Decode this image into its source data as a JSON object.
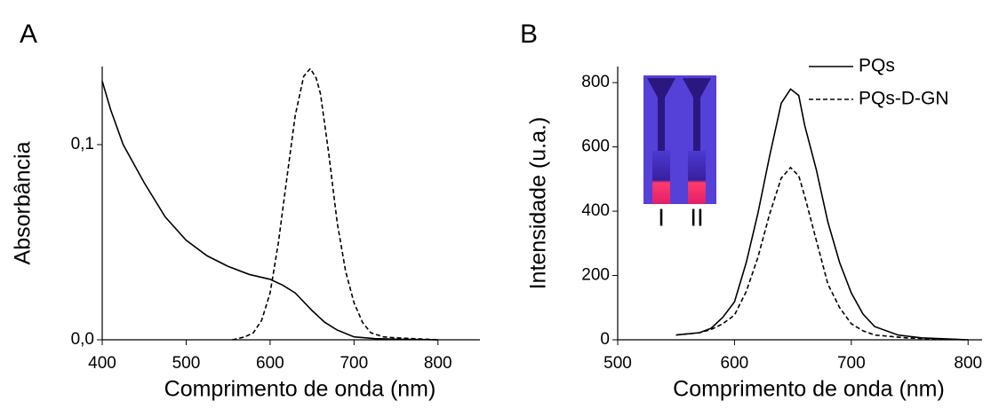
{
  "chart_data": [
    {
      "type": "line",
      "panel_label": "A",
      "xlabel": "Comprimento de onda (nm)",
      "ylabel": "Absorbância",
      "xlim": [
        400,
        850
      ],
      "xticks": [
        400,
        500,
        600,
        700,
        800
      ],
      "ylim": [
        0,
        0.14
      ],
      "yticks": [
        {
          "value": 0,
          "label": "0,0"
        },
        {
          "value": 0.1,
          "label": "0,1"
        }
      ],
      "series": [
        {
          "color": "#000000",
          "dash": "solid",
          "x": [
            400,
            410,
            425,
            450,
            475,
            500,
            525,
            550,
            575,
            600,
            615,
            630,
            650,
            665,
            680,
            700,
            725,
            750,
            800
          ],
          "values": [
            0.1326,
            0.118,
            0.1,
            0.0805,
            0.063,
            0.051,
            0.043,
            0.0376,
            0.0335,
            0.031,
            0.028,
            0.024,
            0.015,
            0.009,
            0.005,
            0.0015,
            0.0006,
            0.0003,
            0
          ]
        },
        {
          "color": "#000000",
          "dash": "dashed",
          "x": [
            555,
            570,
            580,
            590,
            600,
            610,
            620,
            630,
            640,
            648,
            655,
            660,
            670,
            680,
            690,
            700,
            710,
            720,
            735,
            750,
            800
          ],
          "values": [
            0,
            0.0015,
            0.0036,
            0.01,
            0.024,
            0.05,
            0.083,
            0.115,
            0.135,
            0.139,
            0.134,
            0.126,
            0.095,
            0.06,
            0.035,
            0.019,
            0.009,
            0.0036,
            0.0015,
            0.001,
            0
          ]
        }
      ]
    },
    {
      "type": "line",
      "panel_label": "B",
      "xlabel": "Comprimento de onda (nm)",
      "ylabel": "Intensidade (u.a.)",
      "xlim": [
        500,
        812
      ],
      "xticks": [
        500,
        600,
        700,
        800
      ],
      "ylim": [
        0,
        850
      ],
      "yticks": [
        0,
        200,
        400,
        600,
        800
      ],
      "legend": "upper right",
      "inset_labels": [
        "I",
        "II"
      ],
      "series": [
        {
          "name": "PQs",
          "color": "#000000",
          "dash": "solid",
          "x": [
            550,
            570,
            580,
            590,
            600,
            610,
            620,
            630,
            640,
            648,
            655,
            660,
            670,
            680,
            690,
            700,
            710,
            720,
            740,
            760,
            800
          ],
          "values": [
            15,
            22,
            36,
            70,
            118,
            240,
            393,
            570,
            736,
            780,
            760,
            668,
            530,
            366,
            240,
            146,
            80,
            41,
            15,
            6,
            0
          ]
        },
        {
          "name": "PQs-D-GN",
          "color": "#000000",
          "dash": "dashed",
          "x": [
            550,
            570,
            580,
            590,
            600,
            610,
            620,
            630,
            640,
            648,
            655,
            660,
            670,
            680,
            690,
            700,
            710,
            720,
            750,
            800
          ],
          "values": [
            15,
            22,
            32,
            50,
            77,
            150,
            256,
            390,
            503,
            536,
            510,
            448,
            310,
            173,
            100,
            50,
            28,
            15,
            5,
            0
          ]
        }
      ]
    }
  ]
}
